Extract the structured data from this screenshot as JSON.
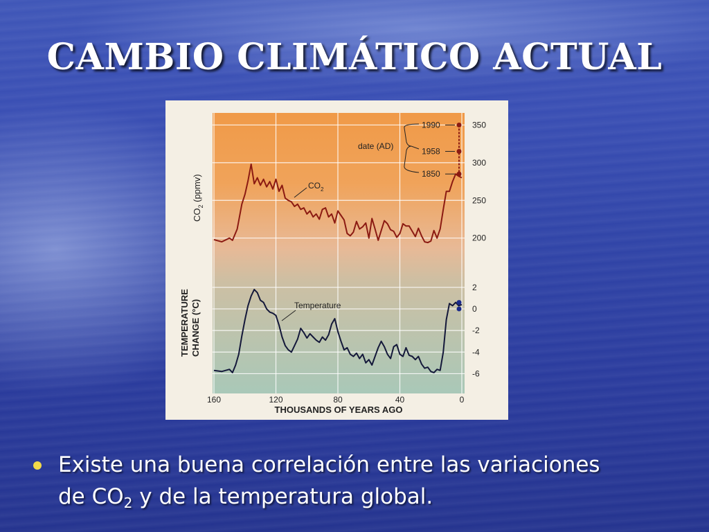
{
  "slide": {
    "title": "CAMBIO CLIMÁTICO ACTUAL",
    "bullet": {
      "line1": "Existe una buena correlación entre las variaciones",
      "line2_pre": "de CO",
      "line2_sub": "2",
      "line2_post": " y de la temperatura global."
    }
  },
  "colors": {
    "co2_line": "#8b1a12",
    "temperature_line": "#14183a",
    "upper_band_top": "#f09a48",
    "lower_band_bottom": "#a9c8b8",
    "grid": "#ffffff",
    "bullet": "#f2d94a"
  },
  "chart_data": {
    "type": "line",
    "xlabel": "THOUSANDS OF YEARS AGO",
    "x_ticks": [
      160,
      120,
      80,
      40,
      0
    ],
    "x_reversed": true,
    "xlim": [
      160,
      0
    ],
    "grid": true,
    "co2": {
      "ylabel_main": "CO",
      "ylabel_sub": "2",
      "ylabel_unit": " (ppmv)",
      "y_ticks": [
        350,
        300,
        250,
        200
      ],
      "ylim": [
        185,
        355
      ],
      "series_label_main": "CO",
      "series_label_sub": "2",
      "x": [
        160,
        155,
        150,
        148,
        145,
        142,
        140,
        138,
        136,
        134,
        132,
        130,
        128,
        126,
        124,
        122,
        120,
        118,
        116,
        114,
        112,
        110,
        108,
        106,
        104,
        102,
        100,
        98,
        96,
        94,
        92,
        90,
        88,
        86,
        84,
        82,
        80,
        78,
        76,
        74,
        72,
        70,
        68,
        66,
        64,
        62,
        60,
        58,
        56,
        54,
        52,
        50,
        48,
        46,
        44,
        42,
        40,
        38,
        36,
        34,
        32,
        30,
        28,
        26,
        24,
        22,
        20,
        18,
        16,
        14,
        12,
        10,
        8,
        6,
        4,
        2,
        0
      ],
      "values": [
        198,
        195,
        200,
        197,
        212,
        245,
        258,
        276,
        298,
        272,
        280,
        270,
        278,
        268,
        275,
        265,
        278,
        262,
        270,
        253,
        250,
        248,
        242,
        245,
        238,
        240,
        232,
        236,
        228,
        232,
        225,
        238,
        240,
        228,
        232,
        220,
        236,
        230,
        224,
        206,
        203,
        208,
        222,
        212,
        215,
        220,
        200,
        226,
        212,
        197,
        210,
        223,
        219,
        211,
        209,
        201,
        206,
        219,
        216,
        216,
        209,
        202,
        213,
        203,
        195,
        194,
        196,
        210,
        200,
        212,
        238,
        262,
        262,
        275,
        285,
        282,
        280
      ],
      "recent_points": [
        {
          "label": "1850",
          "value": 285
        },
        {
          "label": "1958",
          "value": 315
        },
        {
          "label": "1990",
          "value": 350
        }
      ],
      "annotation": "date (AD)"
    },
    "temperature": {
      "ylabel_line1": "TEMPERATURE",
      "ylabel_line2": "CHANGE (°C)",
      "y_ticks": [
        2,
        0,
        -2,
        -4,
        -6
      ],
      "ylim": [
        -7,
        2.5
      ],
      "series_label": "Temperature",
      "x": [
        160,
        155,
        150,
        148,
        146,
        144,
        142,
        140,
        138,
        136,
        134,
        132,
        130,
        128,
        126,
        124,
        122,
        120,
        118,
        116,
        114,
        112,
        110,
        108,
        106,
        104,
        102,
        100,
        98,
        96,
        94,
        92,
        90,
        88,
        86,
        84,
        82,
        80,
        78,
        76,
        74,
        72,
        70,
        68,
        66,
        64,
        62,
        60,
        58,
        56,
        54,
        52,
        50,
        48,
        46,
        44,
        42,
        40,
        38,
        36,
        34,
        32,
        30,
        28,
        26,
        24,
        22,
        20,
        18,
        16,
        14,
        12,
        10,
        8,
        6,
        4,
        2,
        0
      ],
      "values": [
        -5.7,
        -5.8,
        -5.6,
        -5.9,
        -5.2,
        -4.2,
        -2.5,
        -1.0,
        0.3,
        1.2,
        1.8,
        1.5,
        0.8,
        0.6,
        0.0,
        -0.3,
        -0.4,
        -0.6,
        -1.5,
        -2.6,
        -3.4,
        -3.8,
        -4.0,
        -3.4,
        -2.8,
        -1.8,
        -2.2,
        -2.7,
        -2.3,
        -2.6,
        -2.9,
        -3.1,
        -2.6,
        -2.9,
        -2.4,
        -1.4,
        -0.9,
        -2.1,
        -3.0,
        -3.8,
        -3.6,
        -4.2,
        -4.4,
        -4.1,
        -4.6,
        -4.2,
        -5.0,
        -4.7,
        -5.2,
        -4.4,
        -3.6,
        -3.0,
        -3.5,
        -4.2,
        -4.6,
        -3.5,
        -3.3,
        -4.2,
        -4.4,
        -3.6,
        -4.3,
        -4.4,
        -4.7,
        -4.4,
        -5.1,
        -5.5,
        -5.4,
        -5.8,
        -5.9,
        -5.6,
        -5.7,
        -4.0,
        -1.0,
        0.5,
        0.3,
        0.6,
        0.3,
        0.4
      ],
      "recent_points": [
        {
          "label": "1958",
          "value": 0.0
        },
        {
          "label": "1990",
          "value": 0.6
        }
      ]
    }
  }
}
